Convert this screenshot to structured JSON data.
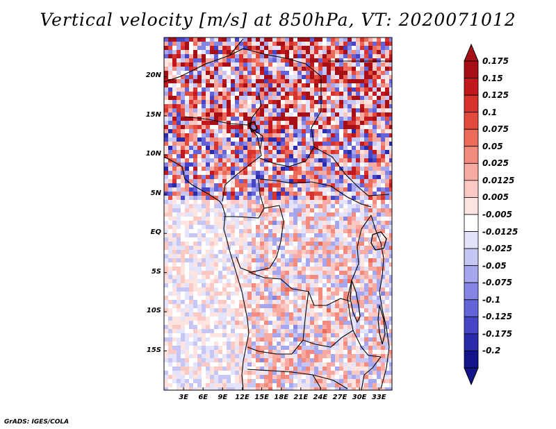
{
  "title": "Vertical velocity [m/s] at 850hPa, VT: 2020071012",
  "credit": "GrADS: IGES/COLA",
  "map": {
    "lon_range": [
      0,
      35
    ],
    "lat_range": [
      -20,
      25
    ],
    "lat_ticks": [
      {
        "value": 20,
        "label": "20N"
      },
      {
        "value": 15,
        "label": "15N"
      },
      {
        "value": 10,
        "label": "10N"
      },
      {
        "value": 5,
        "label": "5N"
      },
      {
        "value": 0,
        "label": "EQ"
      },
      {
        "value": -5,
        "label": "5S"
      },
      {
        "value": -10,
        "label": "10S"
      },
      {
        "value": -15,
        "label": "15S"
      }
    ],
    "lon_ticks": [
      {
        "value": 3,
        "label": "3E"
      },
      {
        "value": 6,
        "label": "6E"
      },
      {
        "value": 9,
        "label": "9E"
      },
      {
        "value": 12,
        "label": "12E"
      },
      {
        "value": 15,
        "label": "15E"
      },
      {
        "value": 18,
        "label": "18E"
      },
      {
        "value": 21,
        "label": "21E"
      },
      {
        "value": 24,
        "label": "24E"
      },
      {
        "value": 27,
        "label": "27E"
      },
      {
        "value": 30,
        "label": "30E"
      },
      {
        "value": 33,
        "label": "33E"
      }
    ]
  },
  "colorbar": {
    "levels": [
      {
        "label": "0.175",
        "color": "#a50f15"
      },
      {
        "label": "0.15",
        "color": "#c0181d"
      },
      {
        "label": "0.125",
        "color": "#d8322e"
      },
      {
        "label": "0.1",
        "color": "#e34a3e"
      },
      {
        "label": "0.075",
        "color": "#ec6a5a"
      },
      {
        "label": "0.05",
        "color": "#f28b7e"
      },
      {
        "label": "0.025",
        "color": "#f7aaa2"
      },
      {
        "label": "0.0125",
        "color": "#fac9c4"
      },
      {
        "label": "0.005",
        "color": "#fde4e1"
      },
      {
        "label": "-0.005",
        "color": "#ffffff"
      },
      {
        "label": "-0.0125",
        "color": "#e3e3fb"
      },
      {
        "label": "-0.025",
        "color": "#c6c6f5"
      },
      {
        "label": "-0.05",
        "color": "#a6a6ee"
      },
      {
        "label": "-0.075",
        "color": "#8585e4"
      },
      {
        "label": "-0.1",
        "color": "#6464d8"
      },
      {
        "label": "-0.125",
        "color": "#4545c6"
      },
      {
        "label": "-0.175",
        "color": "#2a2aac"
      },
      {
        "label": "-0.2",
        "color": "#14148a"
      }
    ],
    "top_color": "#a50f15",
    "bottom_color": "#14148a"
  }
}
